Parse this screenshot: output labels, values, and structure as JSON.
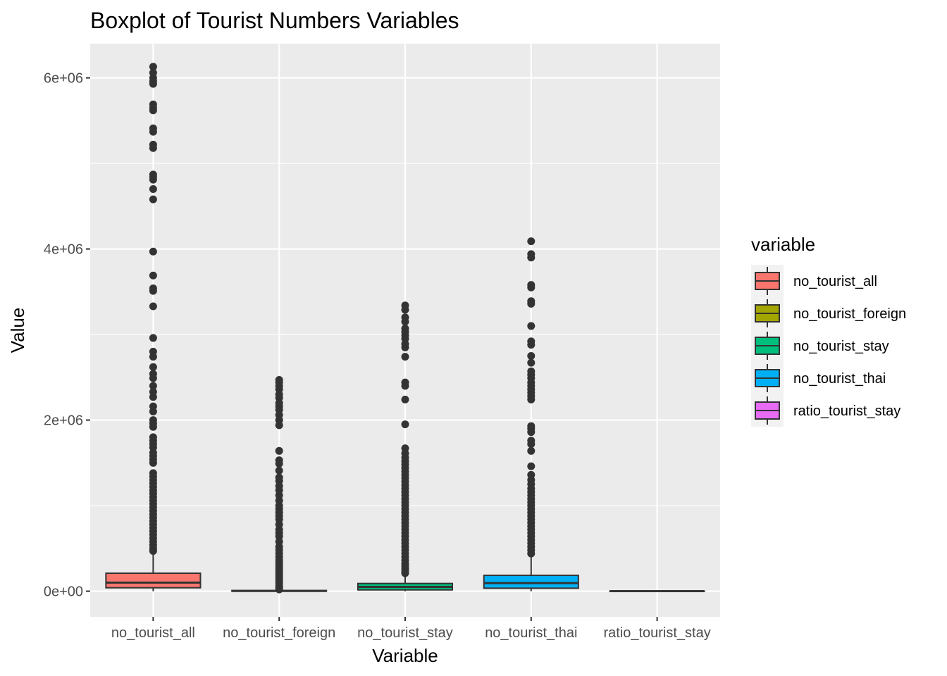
{
  "chart_data": {
    "type": "boxplot",
    "title": "Boxplot of Tourist Numbers Variables",
    "xlabel": "Variable",
    "ylabel": "Value",
    "ylim": [
      -300000,
      6400000
    ],
    "y_ticks": [
      {
        "value": 0,
        "label": "0e+00"
      },
      {
        "value": 2000000,
        "label": "2e+06"
      },
      {
        "value": 4000000,
        "label": "4e+06"
      },
      {
        "value": 6000000,
        "label": "6e+06"
      }
    ],
    "y_minor_ticks": [
      1000000,
      3000000,
      5000000
    ],
    "grid": true,
    "legend": {
      "title": "variable",
      "placement": "right",
      "entries": [
        "no_tourist_all",
        "no_tourist_foreign",
        "no_tourist_stay",
        "no_tourist_thai",
        "ratio_tourist_stay"
      ]
    },
    "categories": [
      "no_tourist_all",
      "no_tourist_foreign",
      "no_tourist_stay",
      "no_tourist_thai",
      "ratio_tourist_stay"
    ],
    "series": [
      {
        "name": "no_tourist_all",
        "color": "#F8766D",
        "q1": 40000,
        "median": 100000,
        "q3": 210000,
        "whisker_low": 0,
        "whisker_high": 450000,
        "outliers": [
          6130000,
          6060000,
          6000000,
          5960000,
          5930000,
          5690000,
          5650000,
          5620000,
          5410000,
          5370000,
          5220000,
          5180000,
          4870000,
          4840000,
          4810000,
          4700000,
          4580000,
          3970000,
          3690000,
          3540000,
          3510000,
          3330000,
          2960000,
          2800000,
          2740000,
          2620000,
          2540000,
          2490000,
          2400000,
          2330000,
          2270000,
          2160000,
          2100000,
          2000000,
          1960000,
          1920000,
          1800000,
          1760000,
          1720000,
          1680000,
          1620000,
          1580000,
          1540000,
          1500000,
          1380000,
          1340000,
          1300000,
          1260000,
          1220000,
          1180000,
          1140000,
          1100000,
          1060000,
          1020000,
          980000,
          940000,
          900000,
          860000,
          820000,
          780000,
          740000,
          700000,
          660000,
          620000,
          580000,
          540000,
          500000,
          470000
        ]
      },
      {
        "name": "no_tourist_foreign",
        "color": "#A3A500",
        "q1": 0,
        "median": 3000,
        "q3": 8000,
        "whisker_low": 0,
        "whisker_high": 15000,
        "outliers": [
          2470000,
          2440000,
          2400000,
          2360000,
          2300000,
          2260000,
          2200000,
          2160000,
          2120000,
          2060000,
          2000000,
          1940000,
          1640000,
          1530000,
          1490000,
          1410000,
          1330000,
          1290000,
          1230000,
          1180000,
          1120000,
          1060000,
          1000000,
          960000,
          920000,
          880000,
          840000,
          780000,
          720000,
          680000,
          640000,
          580000,
          520000,
          480000,
          440000,
          400000,
          360000,
          330000,
          300000,
          270000,
          240000,
          210000,
          180000,
          150000,
          120000,
          90000,
          60000,
          40000,
          20000
        ]
      },
      {
        "name": "no_tourist_stay",
        "color": "#00BF7D",
        "q1": 15000,
        "median": 50000,
        "q3": 90000,
        "whisker_low": 0,
        "whisker_high": 200000,
        "outliers": [
          3340000,
          3290000,
          3200000,
          3150000,
          3070000,
          3030000,
          2990000,
          2950000,
          2890000,
          2850000,
          2740000,
          2440000,
          2400000,
          2240000,
          1950000,
          1670000,
          1610000,
          1560000,
          1520000,
          1480000,
          1440000,
          1400000,
          1360000,
          1320000,
          1280000,
          1240000,
          1200000,
          1160000,
          1120000,
          1080000,
          1040000,
          1000000,
          960000,
          920000,
          880000,
          840000,
          800000,
          760000,
          720000,
          680000,
          640000,
          600000,
          560000,
          520000,
          480000,
          440000,
          400000,
          360000,
          320000,
          290000,
          260000,
          230000,
          210000
        ]
      },
      {
        "name": "no_tourist_thai",
        "color": "#00B0F6",
        "q1": 35000,
        "median": 95000,
        "q3": 185000,
        "whisker_low": 0,
        "whisker_high": 420000,
        "outliers": [
          4090000,
          3940000,
          3900000,
          3580000,
          3550000,
          3390000,
          3360000,
          3100000,
          2920000,
          2880000,
          2750000,
          2670000,
          2570000,
          2530000,
          2490000,
          2440000,
          2400000,
          2360000,
          2320000,
          2280000,
          2240000,
          1930000,
          1900000,
          1860000,
          1760000,
          1720000,
          1640000,
          1460000,
          1360000,
          1300000,
          1250000,
          1200000,
          1160000,
          1120000,
          1080000,
          1040000,
          1000000,
          960000,
          920000,
          880000,
          840000,
          800000,
          760000,
          720000,
          680000,
          640000,
          600000,
          560000,
          520000,
          480000,
          440000
        ]
      },
      {
        "name": "ratio_tourist_stay",
        "color": "#E76BF3",
        "q1": 0,
        "median": 0,
        "q3": 2,
        "whisker_low": 0,
        "whisker_high": 5,
        "outliers": []
      }
    ]
  }
}
